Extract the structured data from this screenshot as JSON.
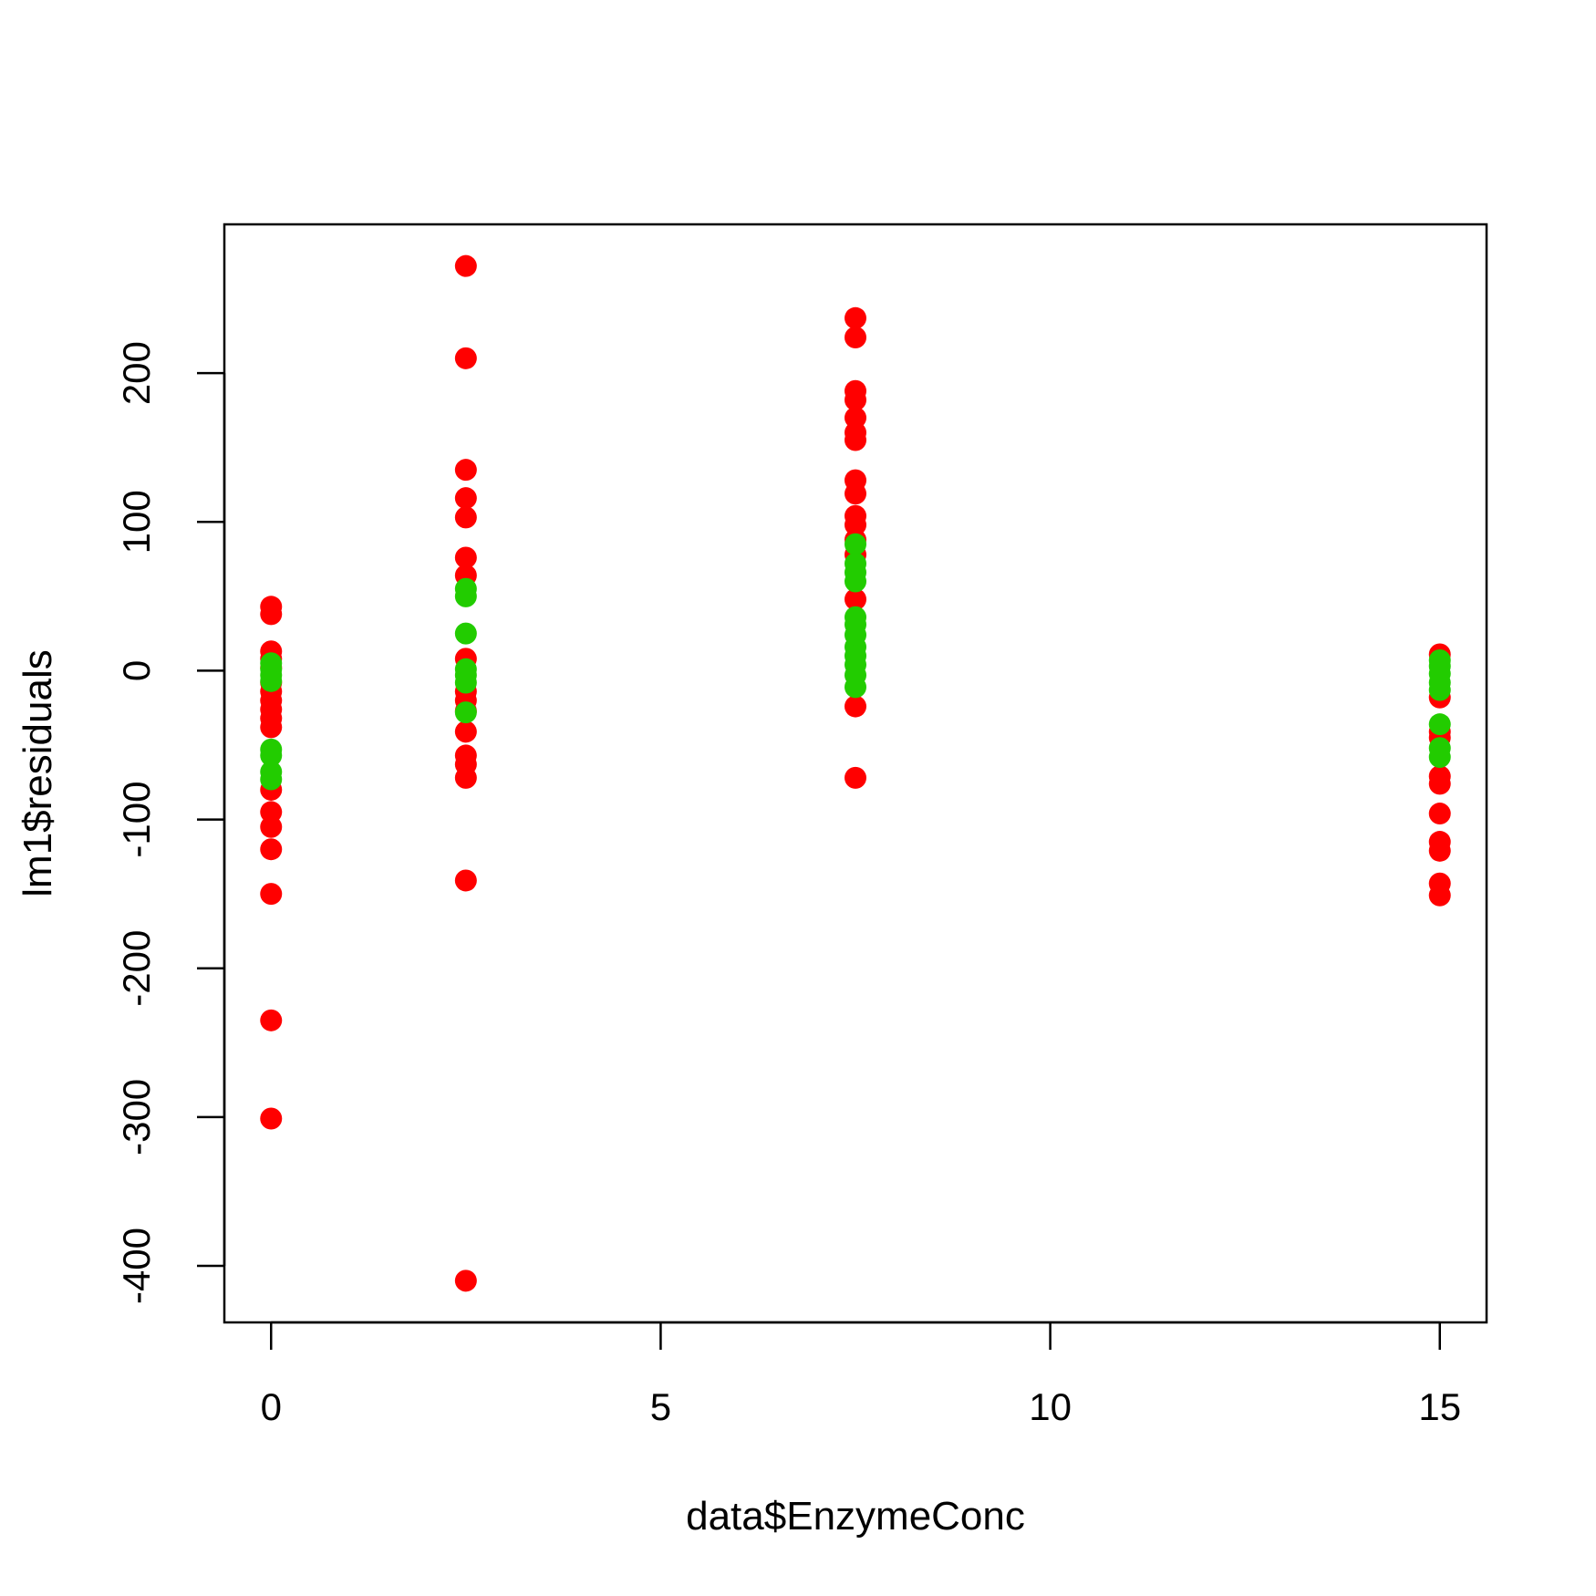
{
  "chart_data": {
    "type": "scatter",
    "title": "",
    "xlabel": "data$EnzymeConc",
    "ylabel": "lm1$residuals",
    "xlim": [
      -0.6,
      15.6
    ],
    "ylim": [
      -438,
      300
    ],
    "x_ticks": [
      0,
      5,
      10,
      15
    ],
    "y_ticks": [
      -400,
      -300,
      -200,
      -100,
      0,
      100,
      200
    ],
    "x_tick_labels": [
      "0",
      "5",
      "10",
      "15"
    ],
    "y_tick_labels": [
      "-400",
      "-300",
      "-200",
      "-100",
      "0",
      "100",
      "200"
    ],
    "grid": false,
    "legend": "none",
    "series": [
      {
        "color": "#ff0000",
        "points": [
          [
            0,
            43
          ],
          [
            0,
            38
          ],
          [
            0,
            13
          ],
          [
            0,
            8
          ],
          [
            0,
            2
          ],
          [
            0,
            -8
          ],
          [
            0,
            -14
          ],
          [
            0,
            -20
          ],
          [
            0,
            -26
          ],
          [
            0,
            -32
          ],
          [
            0,
            -38
          ],
          [
            0,
            -80
          ],
          [
            0,
            -95
          ],
          [
            0,
            -105
          ],
          [
            0,
            -120
          ],
          [
            0,
            -150
          ],
          [
            0,
            -235
          ],
          [
            0,
            -301
          ],
          [
            2.5,
            272
          ],
          [
            2.5,
            210
          ],
          [
            2.5,
            135
          ],
          [
            2.5,
            116
          ],
          [
            2.5,
            103
          ],
          [
            2.5,
            76
          ],
          [
            2.5,
            64
          ],
          [
            2.5,
            8
          ],
          [
            2.5,
            -14
          ],
          [
            2.5,
            -20
          ],
          [
            2.5,
            -27
          ],
          [
            2.5,
            -41
          ],
          [
            2.5,
            -57
          ],
          [
            2.5,
            -63
          ],
          [
            2.5,
            -72
          ],
          [
            2.5,
            -141
          ],
          [
            2.5,
            -410
          ],
          [
            7.5,
            237
          ],
          [
            7.5,
            224
          ],
          [
            7.5,
            188
          ],
          [
            7.5,
            182
          ],
          [
            7.5,
            170
          ],
          [
            7.5,
            160
          ],
          [
            7.5,
            155
          ],
          [
            7.5,
            128
          ],
          [
            7.5,
            119
          ],
          [
            7.5,
            104
          ],
          [
            7.5,
            98
          ],
          [
            7.5,
            88
          ],
          [
            7.5,
            78
          ],
          [
            7.5,
            48
          ],
          [
            7.5,
            -24
          ],
          [
            7.5,
            -72
          ],
          [
            15,
            11
          ],
          [
            15,
            -18
          ],
          [
            15,
            -41
          ],
          [
            15,
            -45
          ],
          [
            15,
            -71
          ],
          [
            15,
            -76
          ],
          [
            15,
            -96
          ],
          [
            15,
            -115
          ],
          [
            15,
            -121
          ],
          [
            15,
            -143
          ],
          [
            15,
            -151
          ]
        ]
      },
      {
        "color": "#22cc00",
        "points": [
          [
            0,
            5
          ],
          [
            0,
            1
          ],
          [
            0,
            -3
          ],
          [
            0,
            -7
          ],
          [
            0,
            -53
          ],
          [
            0,
            -57
          ],
          [
            0,
            -68
          ],
          [
            0,
            -73
          ],
          [
            2.5,
            55
          ],
          [
            2.5,
            50
          ],
          [
            2.5,
            25
          ],
          [
            2.5,
            1
          ],
          [
            2.5,
            -3
          ],
          [
            2.5,
            -8
          ],
          [
            2.5,
            -28
          ],
          [
            7.5,
            85
          ],
          [
            7.5,
            72
          ],
          [
            7.5,
            66
          ],
          [
            7.5,
            60
          ],
          [
            7.5,
            36
          ],
          [
            7.5,
            31
          ],
          [
            7.5,
            24
          ],
          [
            7.5,
            16
          ],
          [
            7.5,
            10
          ],
          [
            7.5,
            4
          ],
          [
            7.5,
            -3
          ],
          [
            7.5,
            -11
          ],
          [
            15,
            7
          ],
          [
            15,
            3
          ],
          [
            15,
            -2
          ],
          [
            15,
            -8
          ],
          [
            15,
            -13
          ],
          [
            15,
            -36
          ],
          [
            15,
            -52
          ],
          [
            15,
            -58
          ]
        ]
      }
    ]
  }
}
